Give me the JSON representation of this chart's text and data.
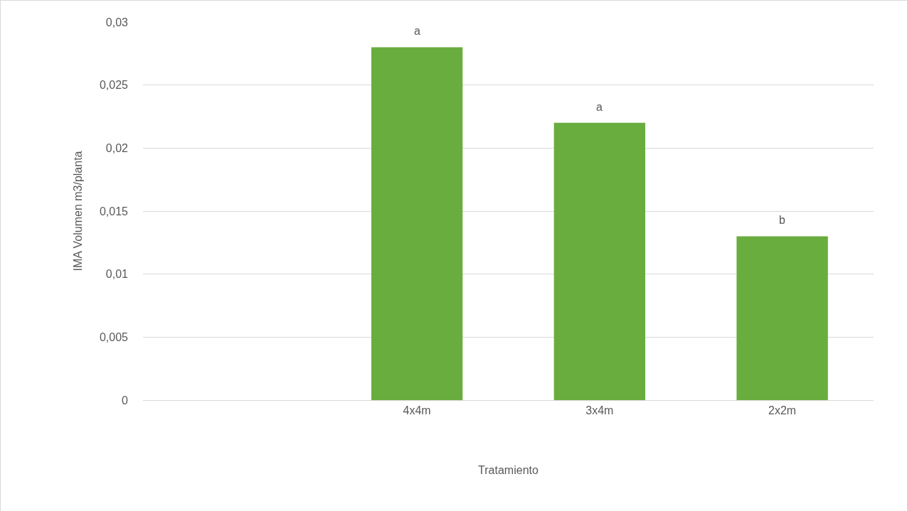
{
  "chart_data": {
    "type": "bar",
    "xlabel": "Tratamiento",
    "ylabel": "IMA Volumen m3/planta",
    "categories": [
      null,
      "4x4m",
      "3x4m",
      "2x2m"
    ],
    "series": [
      {
        "color": "#6aad3f",
        "values": [
          null,
          0.028,
          0.022,
          0.013
        ]
      }
    ],
    "ylim": [
      0,
      0.03
    ],
    "yticks": [
      0,
      {
        "value": 0.005,
        "label": "0,005"
      },
      {
        "value": 0.01,
        "label": "0,01"
      },
      {
        "value": 0.015,
        "label": "0,015"
      },
      {
        "value": 0.02,
        "label": "0,02"
      },
      {
        "value": 0.025,
        "label": "0,025"
      },
      {
        "value": 0.03,
        "label": "0,03"
      }
    ],
    "annotations": [
      {
        "text": "a",
        "x": "4x4m",
        "y": 0.028
      },
      {
        "text": "a",
        "x": "3x4m",
        "y": 0.022
      },
      {
        "text": "b",
        "x": "2x2m",
        "y": 0.013
      }
    ],
    "grid": "y"
  }
}
